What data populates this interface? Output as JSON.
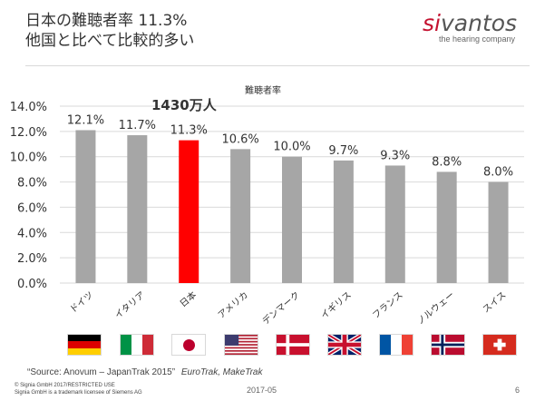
{
  "slide": {
    "title_line1": "日本の難聴者率 11.3%",
    "title_line2": "他国と比べて比較的多い",
    "logo_mark": "si",
    "logo_rest": "vantos",
    "logo_tagline": "the hearing company"
  },
  "chart_data": {
    "type": "bar",
    "ylabel_top": "難聴者率",
    "callout": "1430万人",
    "categories": [
      "ドイツ",
      "イタリア",
      "日本",
      "アメリカ",
      "デンマーク",
      "イギリス",
      "フランス",
      "ノルウェー",
      "スイス"
    ],
    "values": [
      12.1,
      11.7,
      11.3,
      10.6,
      10.0,
      9.7,
      9.3,
      8.8,
      8.0
    ],
    "value_labels": [
      "12.1%",
      "11.7%",
      "11.3%",
      "10.6%",
      "10.0%",
      "9.7%",
      "9.3%",
      "8.8%",
      "8.0%"
    ],
    "ylim": [
      0,
      14
    ],
    "yticks": [
      0,
      2,
      4,
      6,
      8,
      10,
      12,
      14
    ],
    "ytick_labels": [
      "0.0%",
      "2.0%",
      "4.0%",
      "6.0%",
      "8.0%",
      "10.0%",
      "12.0%",
      "14.0%"
    ],
    "highlight_index": 2,
    "colors": {
      "bar": "#a6a6a6",
      "highlight": "#ff0000"
    },
    "flags": [
      "germany-flag",
      "italy-flag",
      "japan-flag",
      "usa-flag",
      "denmark-flag",
      "uk-flag",
      "france-flag",
      "norway-flag",
      "switzerland-flag"
    ]
  },
  "footer": {
    "source": "“Source: Anovum – JapanTrak 2015”",
    "source_italic": "EuroTrak, MakeTrak",
    "copyright_line1": "© Signia GmbH 2017/RESTRICTED USE",
    "copyright_line2": "Signia GmbH is a trademark licensee of Siemens AG",
    "date": "2017-05",
    "page": "6"
  }
}
